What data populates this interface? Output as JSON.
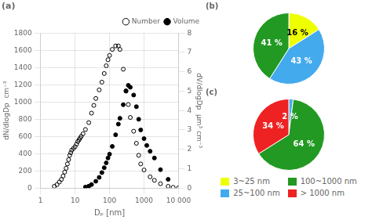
{
  "chart_data": [
    {
      "type": "scatter",
      "title": "(a)",
      "x_label": "Dₚ [nm]",
      "y_label": "dN/dlogDp  cm⁻³",
      "y2_label": "dV/dlogDp  μm³ cm⁻³",
      "log": "x",
      "xlim": [
        1,
        10000
      ],
      "xticks": [
        1,
        10,
        100,
        1000,
        {
          "value": 10000,
          "label": "10 000"
        }
      ],
      "ylim": [
        0,
        1800
      ],
      "yticks": [
        0,
        200,
        400,
        600,
        800,
        1000,
        1200,
        1400,
        1600,
        1800
      ],
      "y2lim": [
        0,
        8
      ],
      "y2ticks": [
        0,
        1,
        2,
        3,
        4,
        5,
        6,
        7,
        8
      ],
      "grid": true,
      "legend": "upper right",
      "series": [
        {
          "name": "Number",
          "color": "#000000",
          "marker": "open_circle",
          "x": [
            2.5,
            3,
            3.5,
            4,
            4.5,
            5,
            5.5,
            6,
            6.5,
            7,
            7.5,
            8,
            9,
            10,
            11,
            12,
            13,
            14,
            15,
            17,
            20,
            25,
            30,
            35,
            40,
            50,
            60,
            70,
            80,
            90,
            100,
            120,
            150,
            180,
            200,
            250,
            300,
            350,
            400,
            500,
            600,
            700,
            800,
            1000,
            1500,
            2000,
            3000,
            5000,
            7000,
            10000
          ],
          "values": [
            20,
            40,
            70,
            100,
            140,
            185,
            230,
            280,
            330,
            380,
            410,
            440,
            460,
            480,
            510,
            540,
            560,
            580,
            600,
            630,
            680,
            760,
            870,
            960,
            1040,
            1140,
            1230,
            1330,
            1420,
            1490,
            1540,
            1610,
            1650,
            1650,
            1610,
            1380,
            1130,
            970,
            820,
            660,
            520,
            380,
            280,
            210,
            130,
            90,
            50,
            20,
            8,
            3
          ]
        },
        {
          "name": "Volume",
          "color": "#000000",
          "marker": "circle",
          "axis": "y2",
          "x": [
            20,
            25,
            30,
            40,
            50,
            60,
            70,
            80,
            90,
            100,
            120,
            150,
            180,
            200,
            250,
            300,
            350,
            400,
            500,
            600,
            700,
            800,
            1000,
            1200,
            1500,
            2000,
            3000,
            5000
          ],
          "values": [
            0.05,
            0.1,
            0.18,
            0.35,
            0.55,
            0.8,
            1.05,
            1.3,
            1.55,
            1.75,
            2.15,
            2.75,
            3.3,
            3.6,
            4.3,
            5.0,
            5.3,
            5.2,
            4.8,
            4.2,
            3.55,
            3.0,
            2.55,
            2.2,
            1.9,
            1.55,
            0.95,
            0.45
          ]
        }
      ]
    },
    {
      "type": "pie",
      "title": "(b)",
      "categories": [
        "3~25 nm",
        "25~100 nm",
        "100~1000 nm"
      ],
      "values": [
        16,
        43,
        41
      ],
      "value_labels": [
        "16 %",
        "43 %",
        "41 %"
      ],
      "colors": [
        "#EEFF00",
        "#44AAEE",
        "#229922"
      ],
      "data_labels": true,
      "legend": "bottom"
    },
    {
      "type": "pie",
      "title": "(c)",
      "categories": [
        "25~100 nm",
        "100~1000 nm",
        "> 1000 nm"
      ],
      "values": [
        2,
        64,
        34
      ],
      "value_labels": [
        "2 %",
        "64 %",
        "34 %"
      ],
      "colors": [
        "#44AAEE",
        "#229922",
        "#EE2222"
      ],
      "data_labels": true,
      "legend": "bottom"
    }
  ]
}
